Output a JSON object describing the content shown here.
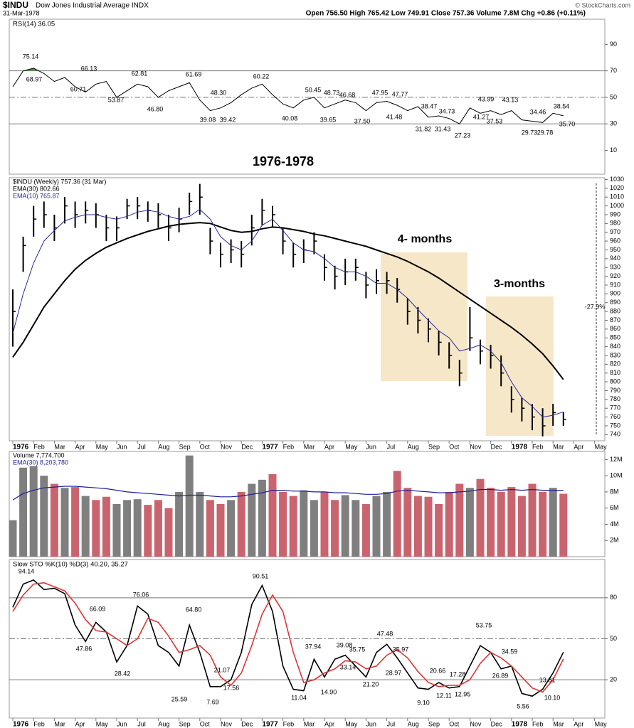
{
  "header": {
    "symbol": "$INDU",
    "name": "Dow Jones Industrial Average INDX",
    "date": "31-Mar-1978",
    "quote": "Open 756.50 High 765.42 Low 749.91 Close 757.36 Volume 7.8M Chg +0.86 (+0.11%)",
    "source": "© StockCharts.com"
  },
  "chart_data": [
    {
      "type": "line",
      "title": "RSI(14) 36.05",
      "color": "#000000",
      "fill_color": "#4f8f4f",
      "values": [
        58,
        70,
        72,
        68,
        62,
        65,
        58,
        54,
        60,
        62,
        50,
        55,
        60,
        58,
        50,
        55,
        58,
        61,
        48,
        40,
        42,
        46,
        52,
        57,
        60,
        52,
        45,
        42,
        48,
        50,
        42,
        45,
        48,
        46,
        40,
        46,
        47,
        44,
        40,
        43,
        35,
        36,
        34,
        30,
        42,
        38,
        40,
        37,
        40,
        33,
        32,
        31,
        38,
        36.05
      ],
      "ylim": [
        -8,
        109
      ],
      "yticks": [
        10,
        30,
        50,
        70,
        90
      ],
      "reference_lines": [
        30,
        50,
        70
      ],
      "annotations": [
        "75.14",
        "68.97",
        "66.13",
        "60.71",
        "53.87",
        "62.81",
        "46.80",
        "61.69",
        "48.30",
        "39.08",
        "39.42",
        "60.22",
        "40.08",
        "50.45",
        "39.65",
        "48.73",
        "46.68",
        "37.50",
        "47.95",
        "41.48",
        "47.77",
        "31.82",
        "38.47",
        "31.43",
        "34.73",
        "27.23",
        "43.99",
        "41.27",
        "37.53",
        "43.13",
        "29.73",
        "34.46",
        "29.78",
        "38.54",
        "35.70"
      ],
      "subtitle": "1976-1978"
    },
    {
      "type": "ohlc",
      "categories": [
        "1976",
        null,
        "Feb",
        null,
        "Mar",
        null,
        "Apr",
        null,
        "May",
        null,
        "Jun",
        null,
        "Jul",
        null,
        "Aug",
        null,
        "Sep",
        null,
        "Oct",
        null,
        "Nov",
        null,
        "Dec",
        null,
        "1977",
        null,
        "Feb",
        null,
        "Mar",
        null,
        "Apr",
        null,
        "May",
        null,
        "Jun",
        null,
        "Jul",
        null,
        "Aug",
        null,
        "Sep",
        null,
        "Oct",
        null,
        "Nov",
        null,
        "Dec",
        null,
        "1978",
        null,
        "Feb",
        null,
        "Mar",
        null,
        "Apr",
        null,
        "May",
        null
      ],
      "series": [
        {
          "name": "$INDU (Weekly) 757.36 (31 Mar)",
          "color": "#000000",
          "high": [
            905,
            965,
            1000,
            1005,
            990,
            1010,
            1005,
            1005,
            1003,
            990,
            988,
            1008,
            1010,
            1005,
            1003,
            990,
            998,
            1015,
            1025,
            975,
            958,
            962,
            960,
            990,
            1008,
            1000,
            975,
            958,
            962,
            970,
            945,
            932,
            940,
            940,
            925,
            928,
            925,
            918,
            895,
            885,
            872,
            858,
            845,
            825,
            885,
            848,
            842,
            830,
            795,
            782,
            775,
            770,
            775,
            765.42,
            null,
            null,
            null,
            null
          ],
          "low": [
            840,
            925,
            965,
            975,
            960,
            980,
            975,
            980,
            975,
            960,
            960,
            985,
            985,
            982,
            975,
            960,
            970,
            990,
            990,
            945,
            930,
            935,
            930,
            955,
            978,
            975,
            945,
            930,
            935,
            945,
            915,
            905,
            910,
            915,
            895,
            900,
            900,
            890,
            865,
            855,
            845,
            830,
            815,
            795,
            835,
            820,
            815,
            795,
            765,
            755,
            745,
            738,
            750,
            749.91,
            null,
            null,
            null,
            null
          ],
          "values": [
            880,
            955,
            985,
            990,
            975,
            1000,
            990,
            995,
            990,
            975,
            975,
            1000,
            1000,
            995,
            990,
            975,
            985,
            1005,
            1010,
            960,
            945,
            950,
            945,
            975,
            995,
            990,
            960,
            945,
            950,
            960,
            930,
            920,
            925,
            930,
            910,
            915,
            915,
            905,
            880,
            870,
            860,
            845,
            830,
            810,
            850,
            835,
            830,
            810,
            780,
            770,
            760,
            750,
            765,
            757.36,
            null,
            null,
            null,
            null
          ]
        },
        {
          "name": "EMA(30) 802.66",
          "color": "#000000",
          "values": [
            828,
            845,
            865,
            885,
            900,
            915,
            928,
            938,
            946,
            953,
            958,
            963,
            967,
            971,
            974,
            977,
            979,
            980,
            981,
            980,
            976,
            972,
            970,
            971,
            974,
            976,
            975,
            973,
            971,
            968,
            966,
            963,
            960,
            957,
            954,
            950,
            946,
            942,
            937,
            931,
            925,
            918,
            910,
            902,
            894,
            886,
            878,
            870,
            862,
            853,
            843,
            832,
            818,
            802.66,
            null,
            null,
            null,
            null
          ]
        },
        {
          "name": "EMA(10) 765.87",
          "color": "#2b2b9a",
          "values": [
            855,
            900,
            935,
            960,
            972,
            983,
            987,
            990,
            990,
            987,
            985,
            988,
            993,
            995,
            993,
            988,
            985,
            988,
            996,
            985,
            965,
            955,
            950,
            960,
            978,
            985,
            972,
            958,
            950,
            948,
            940,
            930,
            925,
            925,
            920,
            912,
            912,
            905,
            895,
            882,
            870,
            858,
            850,
            835,
            838,
            842,
            835,
            822,
            800,
            782,
            772,
            760,
            762,
            765.87,
            null,
            null,
            null,
            null
          ]
        }
      ],
      "ylim": [
        733,
        1032
      ],
      "yticks": [
        740,
        750,
        760,
        770,
        780,
        790,
        800,
        810,
        820,
        830,
        840,
        850,
        860,
        870,
        880,
        890,
        900,
        910,
        920,
        930,
        940,
        950,
        960,
        970,
        980,
        990,
        1000,
        1010,
        1020,
        1030
      ],
      "annotations": [
        "4- months",
        "3-months",
        "-27.9%"
      ],
      "highlight_color": "#f6e7c9"
    },
    {
      "type": "bar",
      "up_color": "#7f7f7f",
      "down_color": "#c9646e",
      "series": [
        {
          "name": "Volume 7,774,700",
          "values": [
            4500000,
            11000000,
            11200000,
            10000000,
            9000000,
            8500000,
            8600000,
            7500000,
            7000000,
            7400000,
            6500000,
            7000000,
            7100000,
            6400000,
            7000000,
            6000000,
            8000000,
            12500000,
            8000000,
            7000000,
            6500000,
            7000000,
            8000000,
            9000000,
            9500000,
            10200000,
            8000000,
            7500000,
            8200000,
            7000000,
            8000000,
            7000000,
            7600000,
            7000000,
            6500000,
            7500000,
            8000000,
            10600000,
            8500000,
            7500000,
            7400000,
            6500000,
            8000000,
            9000000,
            8500000,
            9600000,
            8500000,
            8000000,
            8600000,
            7500000,
            9000000,
            8000000,
            8500000,
            7774700
          ]
        },
        {
          "name": "EMA(30) 8,203,780",
          "color": "#1f1f9a",
          "values": [
            7000000,
            7800000,
            8200000,
            8500000,
            8600000,
            8700000,
            8700000,
            8600000,
            8500000,
            8400000,
            8200000,
            8000000,
            7900000,
            7800000,
            7700000,
            7600000,
            7500000,
            7600000,
            7600000,
            7500000,
            7400000,
            7400000,
            7500000,
            7700000,
            7900000,
            8200000,
            8200000,
            8100000,
            8100000,
            8000000,
            8000000,
            7900000,
            7900000,
            7800000,
            7700000,
            7700000,
            7800000,
            8100000,
            8200000,
            8100000,
            8000000,
            7900000,
            7900000,
            8000000,
            8100000,
            8300000,
            8300000,
            8200000,
            8300000,
            8200000,
            8300000,
            8200000,
            8200000,
            8203780
          ]
        }
      ],
      "ylim": [
        0,
        13000000
      ],
      "yticks": [
        {
          "value": 2000000,
          "label": "2M"
        },
        {
          "value": 4000000,
          "label": "4M"
        },
        {
          "value": 6000000,
          "label": "6M"
        },
        {
          "value": 8000000,
          "label": "8M"
        },
        {
          "value": 10000000,
          "label": "10M"
        },
        {
          "value": 12000000,
          "label": "12M"
        }
      ]
    },
    {
      "type": "line",
      "title": "Slow STO %K(10) %D(3) 40.20, 35.27",
      "categories": [
        "1976",
        null,
        "Feb",
        null,
        "Mar",
        null,
        "Apr",
        null,
        "May",
        null,
        "Jun",
        null,
        "Jul",
        null,
        "Aug",
        null,
        "Sep",
        null,
        "Oct",
        null,
        "Nov",
        null,
        "Dec",
        null,
        "1977",
        null,
        "Feb",
        null,
        "Mar",
        null,
        "Apr",
        null,
        "May",
        null,
        "Jun",
        null,
        "Jul",
        null,
        "Aug",
        null,
        "Sep",
        null,
        "Oct",
        null,
        "Nov",
        null,
        "Dec",
        null,
        "1978",
        null,
        "Feb",
        null,
        "Mar",
        null,
        "Apr",
        null,
        "May",
        null
      ],
      "series": [
        {
          "color": "#000000",
          "values": [
            73,
            90,
            93,
            86,
            87,
            83,
            60,
            48,
            62,
            55,
            33,
            45,
            74,
            68,
            45,
            40,
            30,
            60,
            40,
            15,
            15,
            20,
            40,
            75,
            89,
            70,
            30,
            13,
            12,
            35,
            22,
            35,
            38,
            30,
            22,
            40,
            46,
            36,
            25,
            14,
            13,
            18,
            14,
            15,
            30,
            45,
            40,
            28,
            30,
            10,
            8,
            13,
            25,
            40.2,
            null,
            null,
            null,
            null
          ]
        },
        {
          "color": "#e03434",
          "values": [
            70,
            82,
            90,
            91,
            88,
            85,
            76,
            64,
            56,
            55,
            50,
            45,
            50,
            65,
            62,
            52,
            40,
            42,
            45,
            38,
            22,
            16,
            25,
            45,
            68,
            82,
            70,
            40,
            18,
            20,
            25,
            28,
            34,
            33,
            28,
            30,
            38,
            42,
            36,
            26,
            18,
            15,
            16,
            16,
            20,
            32,
            40,
            36,
            30,
            22,
            14,
            11,
            20,
            35.27,
            null,
            null,
            null,
            null
          ]
        }
      ],
      "ylim": [
        -8,
        108
      ],
      "yticks": [
        20,
        50,
        80
      ],
      "reference_lines": [
        20,
        50,
        80
      ],
      "annotations": [
        "94.14",
        "66.09",
        "47.86",
        "76.06",
        "28.42",
        "64.80",
        "25.59",
        "21.07",
        "7.69",
        "17.56",
        "90.51",
        "11.04",
        "37.94",
        "14.90",
        "39.08",
        "35.75",
        "33.14",
        "21.20",
        "47.48",
        "35.97",
        "28.97",
        "20.66",
        "17.28",
        "9.10",
        "12.11",
        "12.95",
        "53.75",
        "34.59",
        "26.89",
        "13.81",
        "10.10",
        "5.56"
      ]
    }
  ]
}
